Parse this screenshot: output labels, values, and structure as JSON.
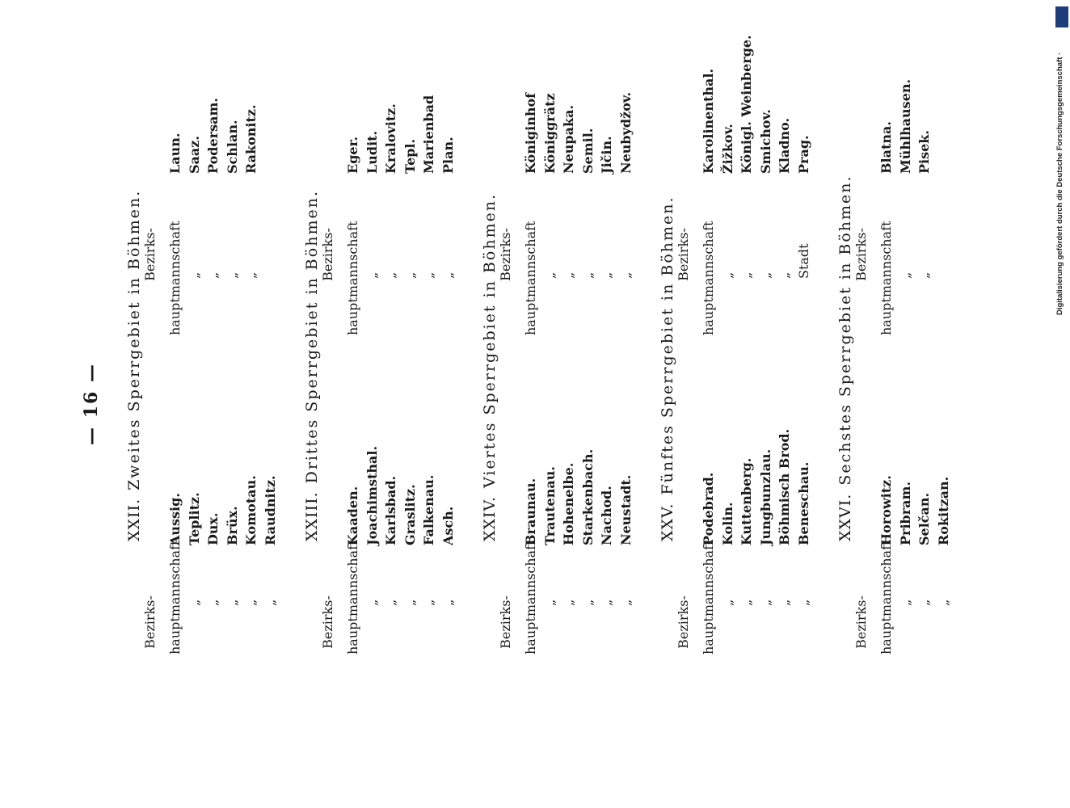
{
  "page_number": "— 16 —",
  "column_head_line1": "Bezirks-",
  "column_head_line2": "hauptmannschaft",
  "sections": [
    {
      "roman": "XXII.",
      "title": "Zweites Sperrgebiet in Böhmen.",
      "left_labels": [
        "hauptmannschaft",
        "„",
        "„",
        "„",
        "„",
        "„"
      ],
      "left_towns": [
        "Aussig.",
        "Teplitz.",
        "Dux.",
        "Brüx.",
        "Komotau.",
        "Raudnitz."
      ],
      "right_labels": [
        "hauptmannschaft",
        "„",
        "„",
        "„",
        "„"
      ],
      "right_towns": [
        "Laun.",
        "Saaz.",
        "Podersam.",
        "Schlan.",
        "Rakonitz."
      ]
    },
    {
      "roman": "XXIII.",
      "title": "Drittes Sperrgebiet in Böhmen.",
      "left_labels": [
        "hauptmannschaft",
        "„",
        "„",
        "„",
        "„",
        "„"
      ],
      "left_towns": [
        "Kaaden.",
        "Joachimsthal.",
        "Karlsbad.",
        "Graslitz.",
        "Falkenau.",
        "Asch."
      ],
      "right_labels": [
        "hauptmannschaft",
        "„",
        "„",
        "„",
        "„",
        "„"
      ],
      "right_towns": [
        "Eger.",
        "Ludit.",
        "Kralovitz.",
        "Tepl.",
        "Marienbad",
        "Plan."
      ]
    },
    {
      "roman": "XXIV.",
      "title": "Viertes Sperrgebiet in Böhmen.",
      "left_labels": [
        "hauptmannschaft",
        "„",
        "„",
        "„",
        "„",
        "„"
      ],
      "left_towns": [
        "Braunau.",
        "Trautenau.",
        "Hohenelbe.",
        "Starkenbach.",
        "Nachod.",
        "Neustadt."
      ],
      "right_labels": [
        "hauptmannschaft",
        "„",
        "„",
        "„",
        "„",
        "„"
      ],
      "right_towns": [
        "Königinhof",
        "Königgrätz",
        "Neupaka.",
        "Semil.",
        "Jičin.",
        "Neubydžov."
      ]
    },
    {
      "roman": "XXV.",
      "title": "Fünftes Sperrgebiet in Böhmen.",
      "left_labels": [
        "hauptmannschaft",
        "„",
        "„",
        "„",
        "„",
        "„"
      ],
      "left_towns": [
        "Podebrad.",
        "Kolin.",
        "Kuttenberg.",
        "Jungbunzlau.",
        "Böhmisch Brod.",
        "Beneschau."
      ],
      "right_labels": [
        "hauptmannschaft",
        "„",
        "„",
        "„",
        "„",
        "Stadt"
      ],
      "right_towns": [
        "Karolinenthal.",
        "Žižkov.",
        "Königl. Weinberge.",
        "Smichov.",
        "Kladno.",
        "Prag."
      ]
    },
    {
      "roman": "XXVI.",
      "title": "Sechstes Sperrgebiet in Böhmen.",
      "left_labels": [
        "hauptmannschaft",
        "„",
        "„",
        "„"
      ],
      "left_towns": [
        "Horowitz.",
        "Pribram.",
        "Selčan.",
        "Rokitzan."
      ],
      "right_labels": [
        "hauptmannschaft",
        "„",
        "„"
      ],
      "right_towns": [
        "Blatna.",
        "Mühlhausen.",
        "Pisek."
      ]
    }
  ],
  "side_note": "Digitalisierung gefördert durch die Deutsche Forschungsgemeinschaft ·",
  "logo_text": "DFG"
}
